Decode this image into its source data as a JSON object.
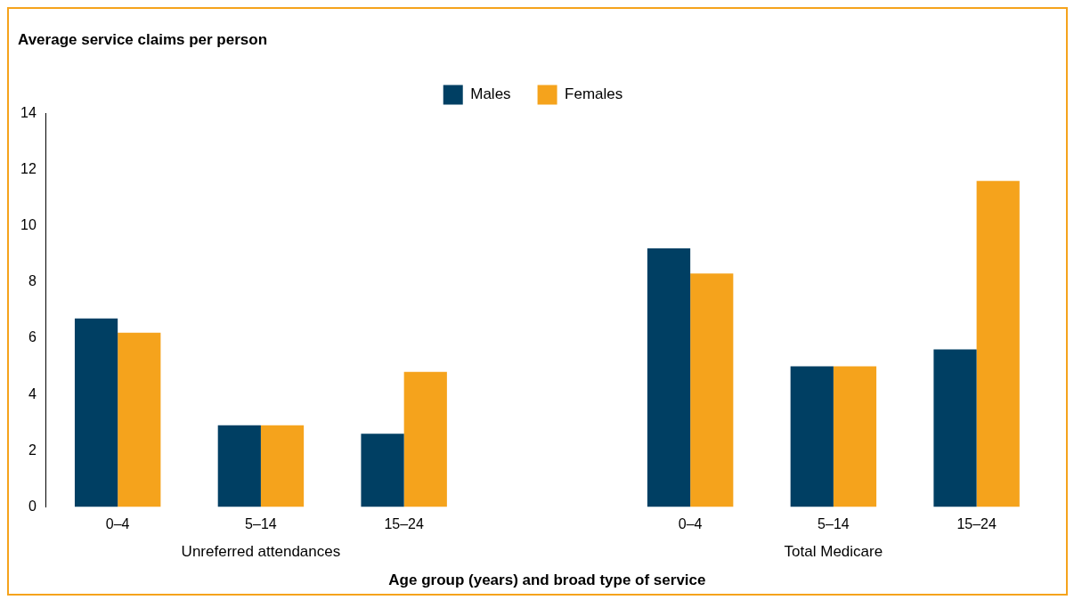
{
  "chart_data": {
    "type": "bar",
    "ylabel": "Average service claims per person",
    "xlabel": "Age group (years) and broad type of service",
    "categories": [
      "0–4",
      "5–14",
      "15–24",
      null,
      "0–4",
      "5–14",
      "15–24"
    ],
    "series": [
      {
        "name": "Males",
        "color": "#003f63",
        "values": [
          6.7,
          2.9,
          2.6,
          null,
          9.2,
          5.0,
          5.6
        ]
      },
      {
        "name": "Females",
        "color": "#f5a31c",
        "values": [
          6.2,
          2.9,
          4.8,
          null,
          8.3,
          5.0,
          11.6
        ]
      }
    ],
    "ylim": [
      0,
      14
    ],
    "yticks": [
      0,
      2,
      4,
      6,
      8,
      10,
      12,
      14
    ],
    "grid": false,
    "legend": "top",
    "annotations": [
      "Unreferred attendances",
      "Total Medicare"
    ]
  }
}
